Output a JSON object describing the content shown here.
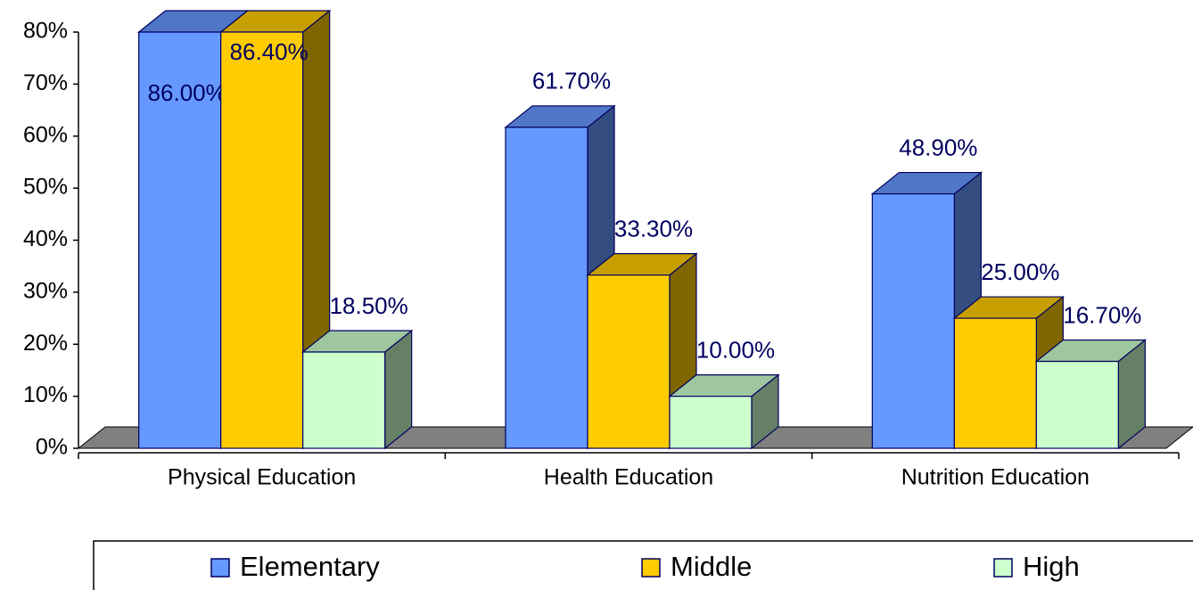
{
  "chart_data": {
    "type": "bar3d",
    "categories": [
      "Physical Education",
      "Health Education",
      "Nutrition Education"
    ],
    "series": [
      {
        "name": "Elementary",
        "color": "#6699ff",
        "values": [
          86.0,
          61.7,
          48.9
        ],
        "value_labels": [
          "86.00%",
          "61.70%",
          "48.90%"
        ]
      },
      {
        "name": "Middle",
        "color": "#ffcc00",
        "values": [
          86.4,
          33.3,
          25.0
        ],
        "value_labels": [
          "86.40%",
          "33.30%",
          "25.00%"
        ]
      },
      {
        "name": "High",
        "color": "#ccffcc",
        "values": [
          18.5,
          10.0,
          16.7
        ],
        "value_labels": [
          "18.50%",
          "10.00%",
          "16.70%"
        ]
      }
    ],
    "ylim": [
      0,
      80
    ],
    "yticks": [
      {
        "value": 0,
        "label": "0%"
      },
      {
        "value": 10,
        "label": "10%"
      },
      {
        "value": 20,
        "label": "20%"
      },
      {
        "value": 30,
        "label": "30%"
      },
      {
        "value": 40,
        "label": "40%"
      },
      {
        "value": 50,
        "label": "50%"
      },
      {
        "value": 60,
        "label": "60%"
      },
      {
        "value": 70,
        "label": "70%"
      },
      {
        "value": 80,
        "label": "80%"
      }
    ],
    "legend": "bottom"
  }
}
